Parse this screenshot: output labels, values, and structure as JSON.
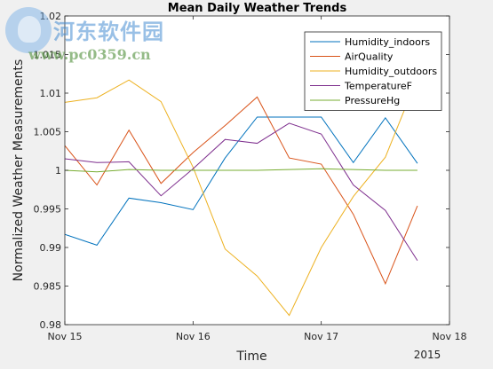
{
  "watermark": {
    "title": "河东软件园",
    "url": "www.pc0359.cn"
  },
  "chart_data": {
    "type": "line",
    "title": "Mean Daily Weather Trends",
    "xlabel": "Time",
    "ylabel": "Normalized Weather Measurements",
    "x_tick_labels": [
      "Nov 15",
      "Nov 16",
      "Nov 17",
      "Nov 18"
    ],
    "x_secondary_label": "2015",
    "xlim": [
      0,
      3
    ],
    "ylim": [
      0.98,
      1.02
    ],
    "y_ticks": [
      0.98,
      0.985,
      0.99,
      0.995,
      1,
      1.005,
      1.01,
      1.015,
      1.02
    ],
    "y_tick_labels": [
      "0.98",
      "0.985",
      "0.99",
      "0.995",
      "1",
      "1.005",
      "1.01",
      "1.015",
      "1.02"
    ],
    "grid": false,
    "legend_position": "top-right",
    "x": [
      0,
      0.25,
      0.5,
      0.75,
      1.0,
      1.25,
      1.5,
      1.75,
      2.0,
      2.25,
      2.5,
      2.75
    ],
    "series": [
      {
        "name": "Humidity_indoors",
        "color": "#0072bd",
        "values": [
          0.9917,
          0.9903,
          0.9964,
          0.9958,
          0.9949,
          1.0016,
          1.0069,
          1.0069,
          1.0069,
          1.001,
          1.0068,
          1.0009
        ]
      },
      {
        "name": "AirQuality",
        "color": "#d95319",
        "values": [
          1.0032,
          0.9981,
          1.0052,
          0.9983,
          1.0023,
          1.0058,
          1.0095,
          1.0016,
          1.0008,
          0.9943,
          0.9853,
          0.9954
        ]
      },
      {
        "name": "Humidity_outdoors",
        "color": "#edb120",
        "values": [
          1.0088,
          1.0094,
          1.0117,
          1.0089,
          1.0004,
          0.9898,
          0.9863,
          0.9812,
          0.99,
          0.9966,
          1.0017,
          1.012
        ]
      },
      {
        "name": "TemperatureF",
        "color": "#7e2f8e",
        "values": [
          1.0015,
          1.001,
          1.0011,
          0.9967,
          1.0002,
          1.004,
          1.0035,
          1.0061,
          1.0047,
          0.9981,
          0.9948,
          0.9883
        ]
      },
      {
        "name": "PressureHg",
        "color": "#77ac30",
        "values": [
          1.0,
          0.9998,
          1.0001,
          1.0,
          1.0,
          1.0,
          1.0,
          1.0001,
          1.0002,
          1.0001,
          1.0,
          1.0
        ]
      }
    ]
  }
}
